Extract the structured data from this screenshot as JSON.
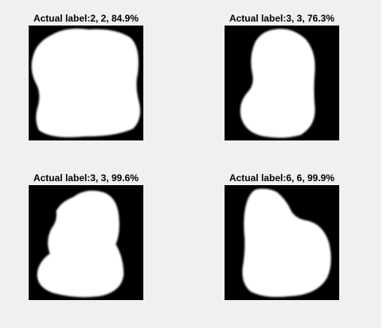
{
  "figure": {
    "background_color": "#f0f0f0",
    "panels": [
      {
        "title": "Actual label:2, 2, 84.9%",
        "image_icon": "digit-blob-image"
      },
      {
        "title": "Actual label:3, 3, 76.3%",
        "image_icon": "digit-blob-image"
      },
      {
        "title": "Actual label:3, 3, 99.6%",
        "image_icon": "digit-blob-image"
      },
      {
        "title": "Actual label:6, 6, 99.9%",
        "image_icon": "digit-blob-image"
      }
    ]
  }
}
